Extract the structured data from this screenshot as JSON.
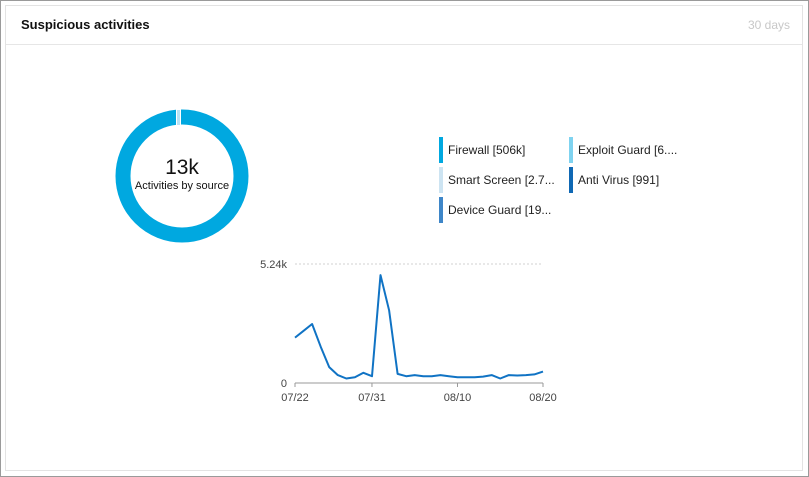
{
  "card": {
    "title": "Suspicious activities",
    "range": "30 days"
  },
  "donut": {
    "value": "13k",
    "label": "Activities by source"
  },
  "legend": [
    {
      "label": "Firewall [506k]",
      "color": "#00a8e0"
    },
    {
      "label": "Exploit Guard [6....",
      "color": "#7fd3f0"
    },
    {
      "label": "Smart Screen [2.7...",
      "color": "#cde4f2"
    },
    {
      "label": "Anti Virus [991]",
      "color": "#0f68b4"
    },
    {
      "label": "Device Guard [19...",
      "color": "#3e86c8"
    }
  ],
  "chart_data": {
    "type": "line",
    "color": "#1073c4",
    "y_max_label": "5.24k",
    "y_min_label": "0",
    "ylim": [
      0,
      5240
    ],
    "x_tick_labels": [
      "07/22",
      "07/31",
      "08/10",
      "08/20"
    ],
    "x": [
      "07/22",
      "07/23",
      "07/24",
      "07/25",
      "07/26",
      "07/27",
      "07/28",
      "07/29",
      "07/30",
      "07/31",
      "08/01",
      "08/02",
      "08/03",
      "08/04",
      "08/05",
      "08/06",
      "08/07",
      "08/08",
      "08/09",
      "08/10",
      "08/11",
      "08/12",
      "08/13",
      "08/14",
      "08/15",
      "08/16",
      "08/17",
      "08/18",
      "08/19",
      "08/20"
    ],
    "values": [
      2000,
      2300,
      2600,
      1600,
      700,
      350,
      200,
      250,
      450,
      300,
      4750,
      3200,
      400,
      300,
      350,
      300,
      300,
      350,
      300,
      250,
      250,
      250,
      280,
      350,
      200,
      350,
      330,
      350,
      380,
      500
    ]
  }
}
